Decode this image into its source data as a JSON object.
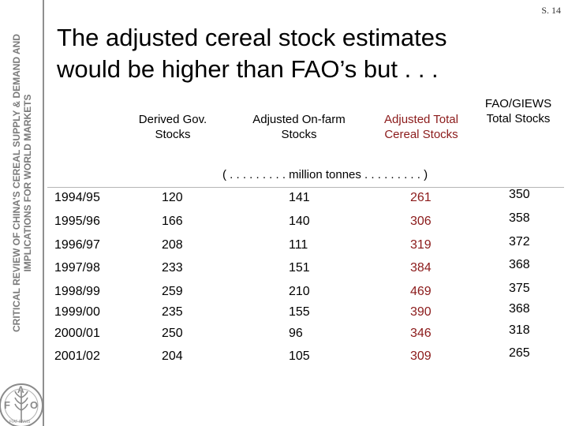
{
  "sidebar": {
    "line1": "CRITICAL REVIEW OF CHINA'S CEREAL SUPPLY & DEMAND AND",
    "line2": "IMPLICATIONS FOR WORLD MARKETS"
  },
  "slide_number": "S. 14",
  "title": {
    "line1": "The adjusted cereal stock estimates",
    "line2": "would be higher than FAO’s but . . ."
  },
  "table": {
    "headers": {
      "derived": "Derived Gov. Stocks",
      "onfarm": "Adjusted On-farm Stocks",
      "total": "Adjusted Total Cereal Stocks",
      "fao": "FAO/GIEWS Total Stocks"
    },
    "units": "( . . . . . . . . .  million tonnes . . . . . . . . . )",
    "rows": [
      {
        "year": "1994/95",
        "derived": "120",
        "onfarm": "141",
        "total": "261",
        "fao": "350"
      },
      {
        "year": "1995/96",
        "derived": "166",
        "onfarm": "140",
        "total": "306",
        "fao": "358"
      },
      {
        "year": "1996/97",
        "derived": "208",
        "onfarm": "111",
        "total": "319",
        "fao": "372"
      },
      {
        "year": "1997/98",
        "derived": "233",
        "onfarm": "151",
        "total": "384",
        "fao": "368"
      },
      {
        "year": "1998/99",
        "derived": "259",
        "onfarm": "210",
        "total": "469",
        "fao": "375"
      },
      {
        "year": "1999/00",
        "derived": "235",
        "onfarm": "155",
        "total": "390",
        "fao": "368"
      },
      {
        "year": "2000/01",
        "derived": "250",
        "onfarm": "96",
        "total": "346",
        "fao": "318"
      },
      {
        "year": "2001/02",
        "derived": "204",
        "onfarm": "105",
        "total": "309",
        "fao": "265"
      }
    ]
  },
  "colors": {
    "adjusted_total": "#8b1a1a",
    "sidebar_text": "#7a7a7a"
  },
  "logo": {
    "letters": [
      "F",
      "A",
      "O"
    ],
    "motto": "FIAT PANIS"
  }
}
